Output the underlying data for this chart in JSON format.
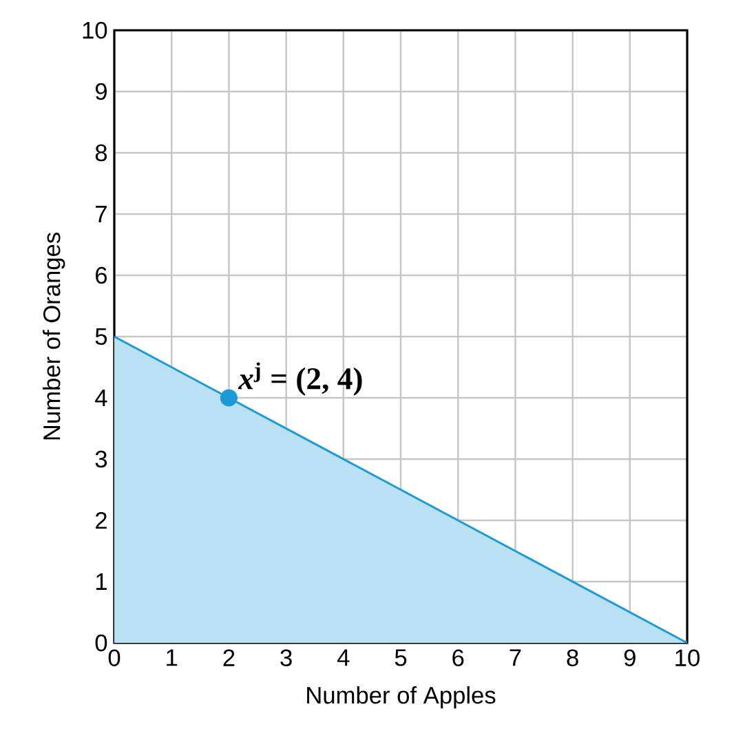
{
  "chart_data": {
    "type": "area",
    "xlabel": "Number of Apples",
    "ylabel": "Number of Oranges",
    "series": [
      {
        "color": "#1a9bd7",
        "x": [
          0,
          10
        ],
        "values": [
          5,
          0
        ]
      },
      {
        "type": "scatter",
        "color": "#1a9bd7",
        "x": [
          2
        ],
        "values": [
          4
        ],
        "marker": "circle"
      }
    ],
    "annotations": [
      {
        "text": "*x*$^{j}$ = (2, 4)",
        "x": 2,
        "y": 4
      }
    ],
    "xlim": [
      0,
      10
    ],
    "ylim": [
      0,
      10
    ],
    "xticks": [
      0,
      1,
      2,
      3,
      4,
      5,
      6,
      7,
      8,
      9,
      10
    ],
    "yticks": [
      0,
      1,
      2,
      3,
      4,
      5,
      6,
      7,
      8,
      9,
      10
    ],
    "grid": true
  }
}
